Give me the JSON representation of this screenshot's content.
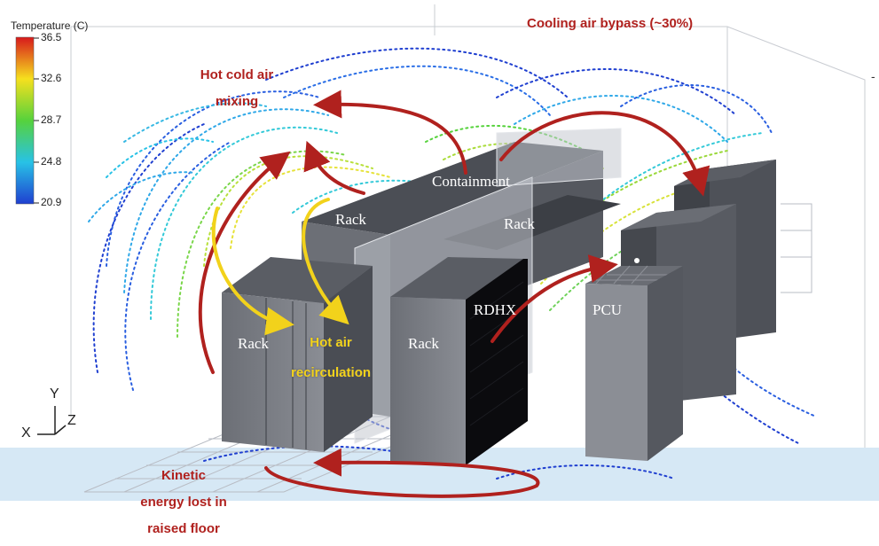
{
  "legend": {
    "title": "Temperature (C)",
    "ticks": [
      "36.5",
      "32.6",
      "28.7",
      "24.8",
      "20.9"
    ],
    "colors": [
      "#d7191c",
      "#f6e01e",
      "#56d23c",
      "#28c2e6",
      "#1f3fd0"
    ]
  },
  "annotations": {
    "bypass": "Cooling air bypass (~30%)",
    "mixing_line1": "Hot cold air",
    "mixing_line2": "mixing",
    "recirc_line1": "Hot air",
    "recirc_line2": "recirculation",
    "kinetic_line1": "Kinetic",
    "kinetic_line2": "energy lost in",
    "kinetic_line3": "raised floor"
  },
  "objects": {
    "containment": "Containment",
    "rack_back_left": "Rack",
    "rack_back_right": "Rack",
    "rack_front_left": "Rack",
    "rack_front_mid": "Rack",
    "rdhx": "RDHX",
    "pcu": "PCU"
  },
  "axes": {
    "x": "X",
    "y": "Y",
    "z": "Z"
  },
  "edge_mark": "-",
  "colors": {
    "annotation_red": "#b0211e",
    "annotation_yellow": "#f2d21b",
    "rack_gray": "#7c7f86",
    "floor_blue": "#d6e8f5"
  }
}
